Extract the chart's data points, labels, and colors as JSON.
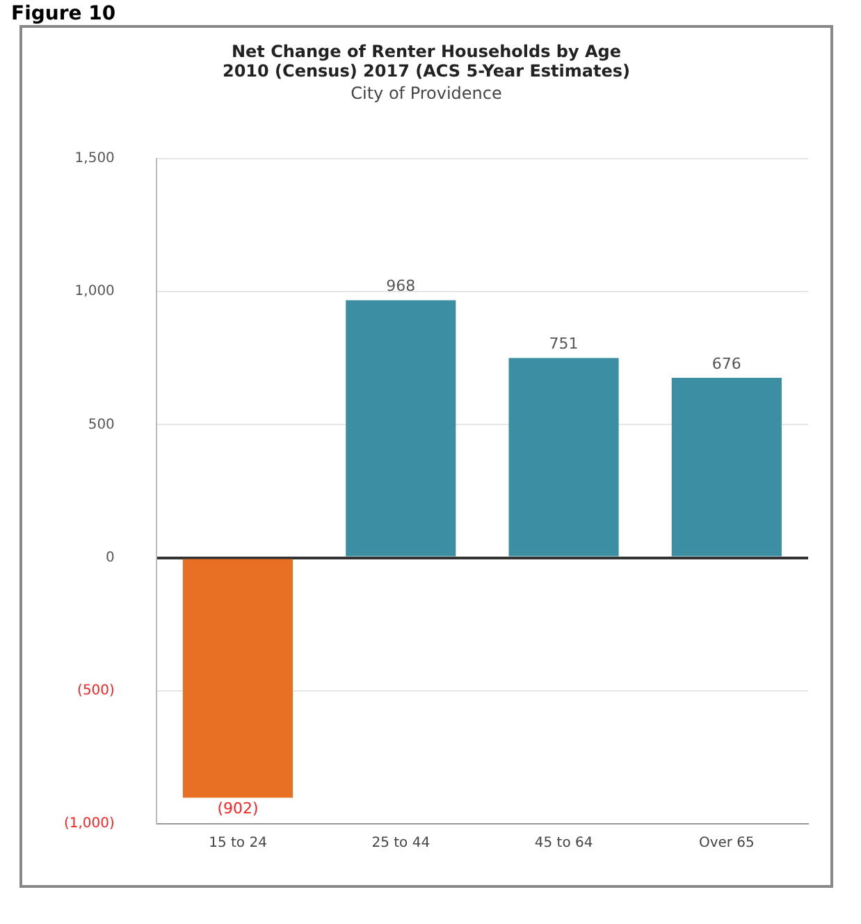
{
  "chart_data": {
    "type": "bar",
    "title": "Net Change of Renter Households by Age\n2010 (Census) 2017 (ACS 5-Year Estimates)",
    "subtitle": "City of Providence",
    "annotations": [
      "Figure 10"
    ],
    "categories": [
      "15 to 24",
      "25 to 44",
      "45 to 64",
      "Over 65"
    ],
    "values": [
      -902,
      968,
      751,
      676
    ],
    "colors": [
      "#e87025",
      "#3c8fa3",
      "#3c8fa3",
      "#3c8fa3"
    ],
    "value_labels": [
      "(902)",
      "968",
      "751",
      "676"
    ],
    "ylim": [
      -1000,
      1500
    ],
    "yticks": [
      {
        "value": -1000,
        "label": "(1,000)"
      },
      {
        "value": -500,
        "label": "(500)"
      },
      {
        "value": 0,
        "label": "0"
      },
      {
        "value": 500,
        "label": "500"
      },
      {
        "value": 1000,
        "label": "1,000"
      },
      {
        "value": 1500,
        "label": "1,500"
      }
    ],
    "grid": "y",
    "legend": false
  }
}
